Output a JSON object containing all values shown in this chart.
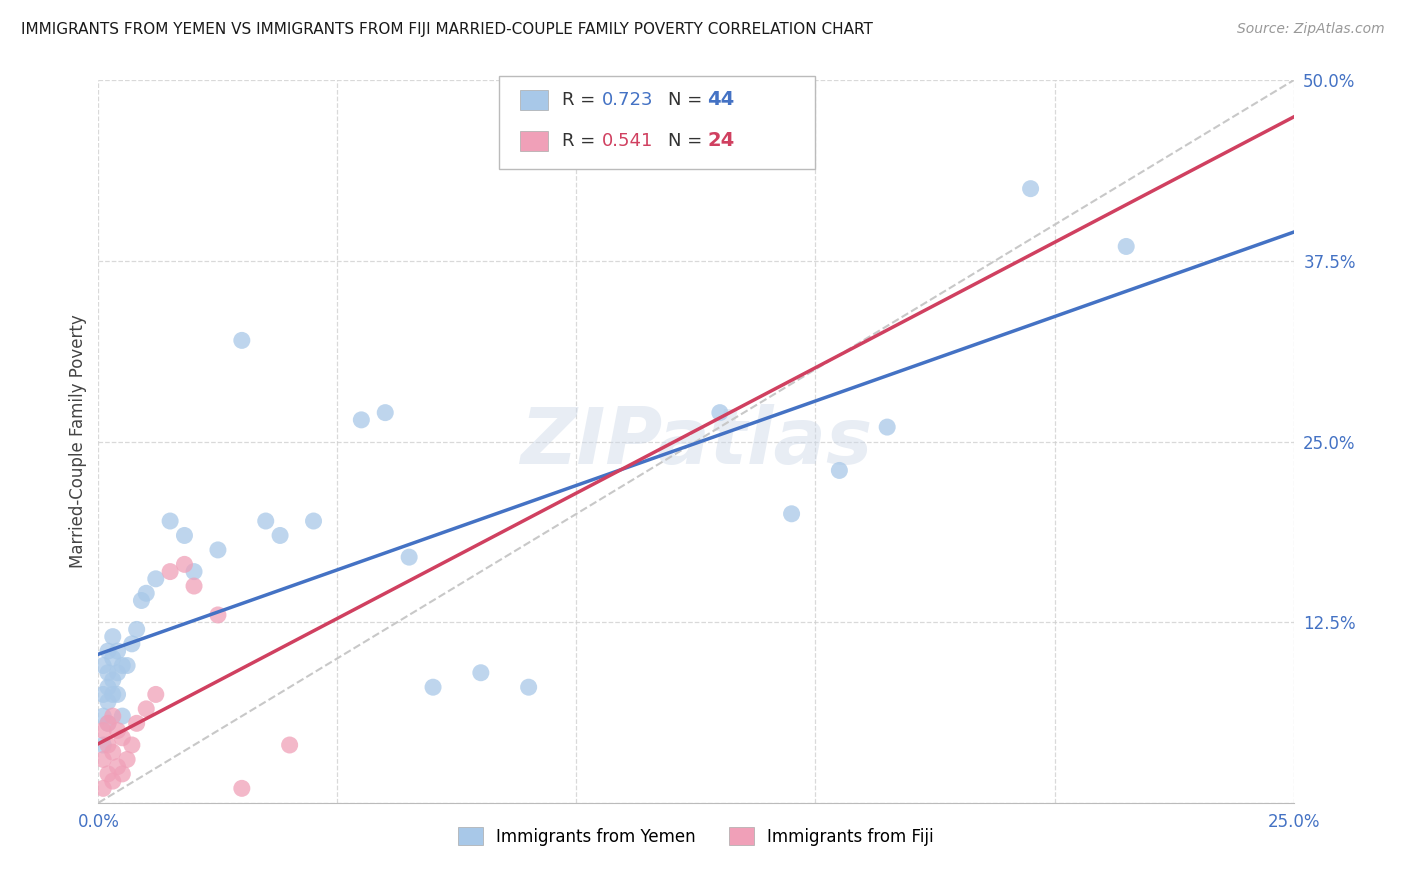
{
  "title": "IMMIGRANTS FROM YEMEN VS IMMIGRANTS FROM FIJI MARRIED-COUPLE FAMILY POVERTY CORRELATION CHART",
  "source": "Source: ZipAtlas.com",
  "ylabel": "Married-Couple Family Poverty",
  "xlim": [
    0,
    0.25
  ],
  "ylim": [
    0,
    0.5
  ],
  "xticks": [
    0.0,
    0.05,
    0.1,
    0.15,
    0.2,
    0.25
  ],
  "yticks": [
    0.0,
    0.125,
    0.25,
    0.375,
    0.5
  ],
  "xticklabels": [
    "0.0%",
    "",
    "",
    "",
    "",
    "25.0%"
  ],
  "yticklabels_right": [
    "",
    "12.5%",
    "25.0%",
    "37.5%",
    "50.0%"
  ],
  "legend_label_yemen": "Immigrants from Yemen",
  "legend_label_fiji": "Immigrants from Fiji",
  "watermark": "ZIPatlas",
  "yemen_color": "#a8c8e8",
  "fiji_color": "#f0a0b8",
  "yemen_line_color": "#4472c4",
  "fiji_line_color": "#d04060",
  "ref_line_color": "#c8c8c8",
  "yemen_x": [
    0.001,
    0.001,
    0.001,
    0.001,
    0.002,
    0.002,
    0.002,
    0.002,
    0.002,
    0.003,
    0.003,
    0.003,
    0.003,
    0.004,
    0.004,
    0.004,
    0.005,
    0.005,
    0.006,
    0.007,
    0.008,
    0.009,
    0.01,
    0.012,
    0.015,
    0.018,
    0.02,
    0.025,
    0.03,
    0.035,
    0.038,
    0.045,
    0.055,
    0.06,
    0.065,
    0.07,
    0.08,
    0.09,
    0.13,
    0.145,
    0.155,
    0.165,
    0.195,
    0.215
  ],
  "yemen_y": [
    0.04,
    0.06,
    0.075,
    0.095,
    0.055,
    0.07,
    0.08,
    0.09,
    0.105,
    0.075,
    0.085,
    0.1,
    0.115,
    0.075,
    0.09,
    0.105,
    0.06,
    0.095,
    0.095,
    0.11,
    0.12,
    0.14,
    0.145,
    0.155,
    0.195,
    0.185,
    0.16,
    0.175,
    0.32,
    0.195,
    0.185,
    0.195,
    0.265,
    0.27,
    0.17,
    0.08,
    0.09,
    0.08,
    0.27,
    0.2,
    0.23,
    0.26,
    0.425,
    0.385
  ],
  "fiji_x": [
    0.001,
    0.001,
    0.001,
    0.002,
    0.002,
    0.002,
    0.003,
    0.003,
    0.003,
    0.004,
    0.004,
    0.005,
    0.005,
    0.006,
    0.007,
    0.008,
    0.01,
    0.012,
    0.015,
    0.018,
    0.02,
    0.025,
    0.03,
    0.04
  ],
  "fiji_y": [
    0.01,
    0.03,
    0.05,
    0.02,
    0.04,
    0.055,
    0.015,
    0.035,
    0.06,
    0.025,
    0.05,
    0.02,
    0.045,
    0.03,
    0.04,
    0.055,
    0.065,
    0.075,
    0.16,
    0.165,
    0.15,
    0.13,
    0.01,
    0.04
  ],
  "background_color": "#ffffff",
  "grid_color": "#d0d0d0",
  "title_color": "#1a1a1a",
  "source_color": "#999999",
  "tick_color": "#4472c4",
  "ylabel_color": "#444444"
}
